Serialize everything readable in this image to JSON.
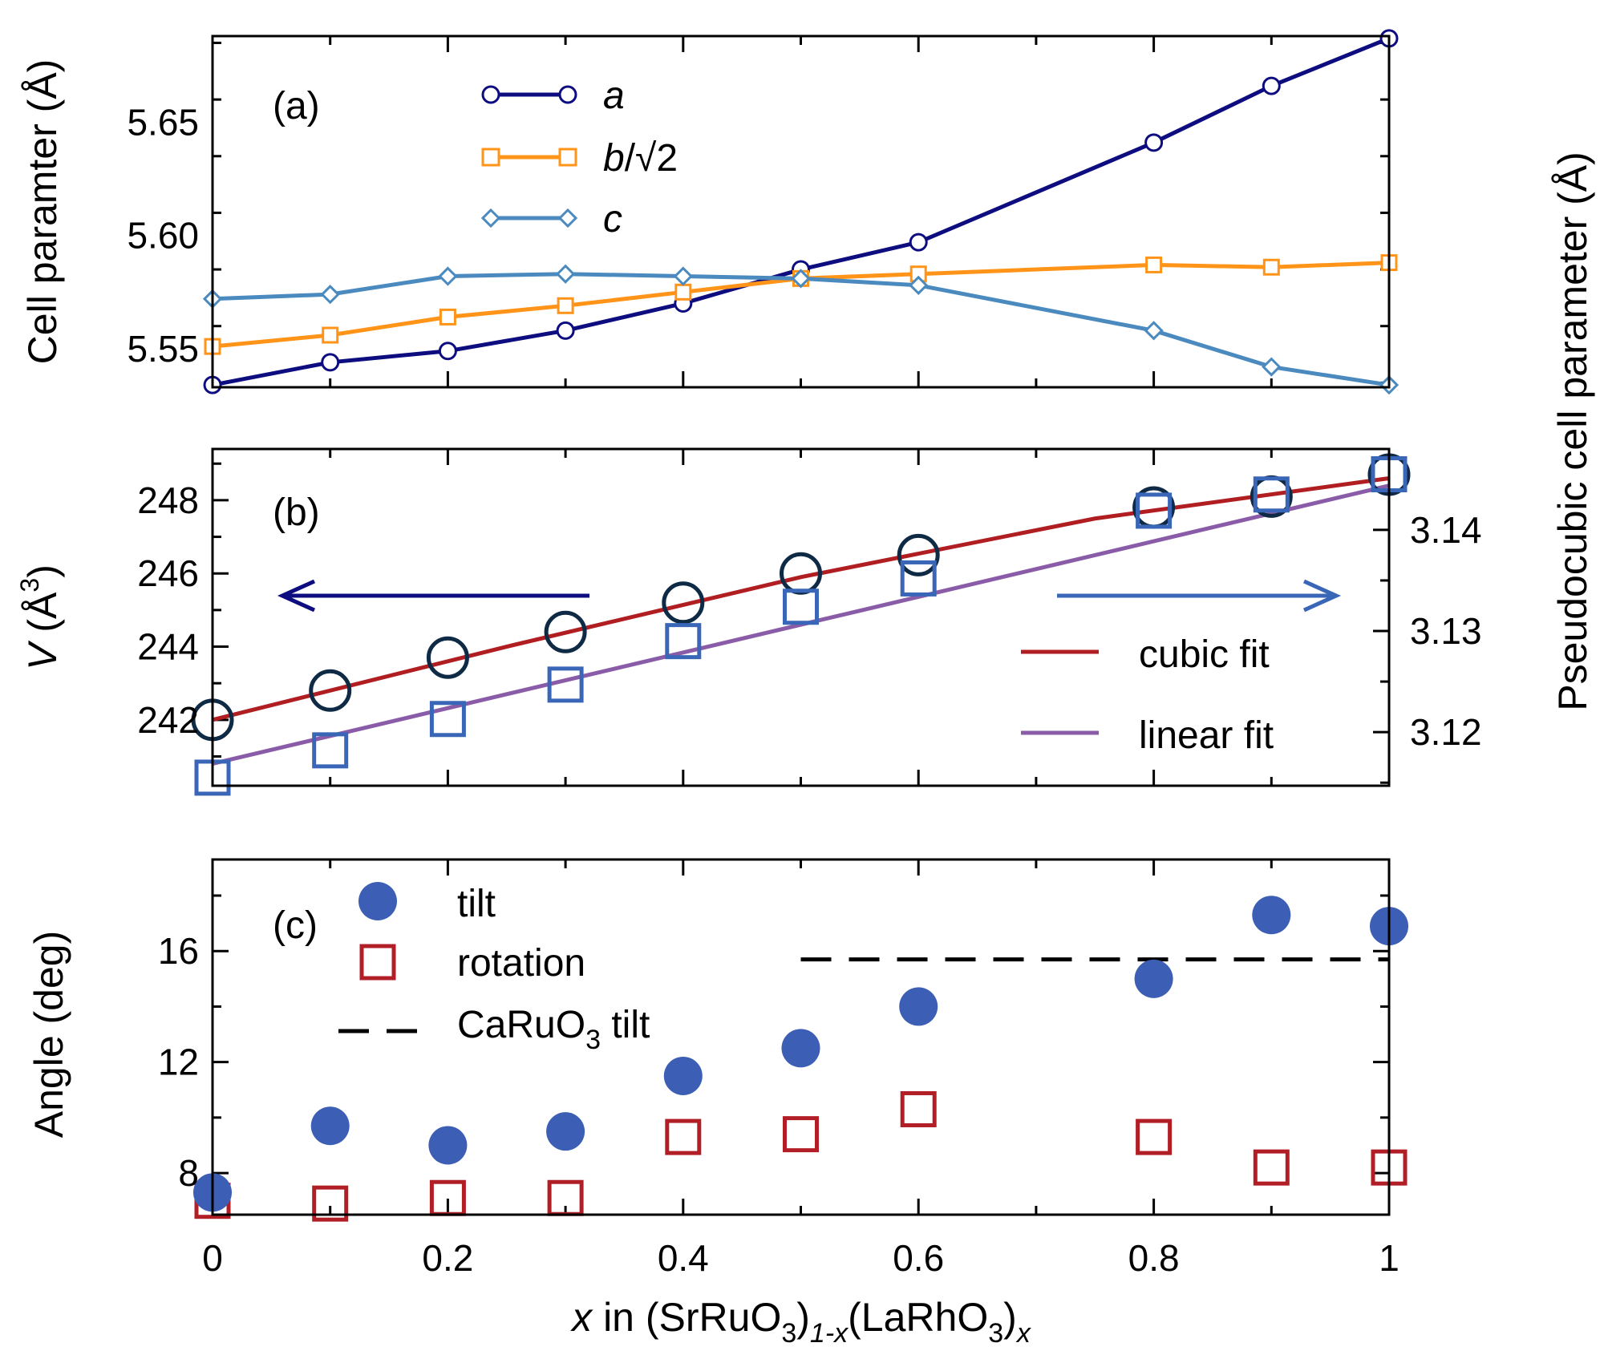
{
  "colors": {
    "a": "#0d0d80",
    "b": "#ff9419",
    "c": "#4a8abf",
    "volume_marker": "#0f2a45",
    "pseudocubic_marker": "#3a66b8",
    "cubic_fit": "#b01e22",
    "linear_fit": "#8a5ca8",
    "tilt": "#3c5fb5",
    "rotation": "#b21e25",
    "caruo3": "#000000",
    "arrow_left": "#0d0d80",
    "arrow_right": "#3a66b8"
  },
  "x_axis": {
    "label_prefix": "x",
    "label_main": " in (SrRuO",
    "label_sub1": "3",
    "label_mid1": ")",
    "label_sub2": "1-x",
    "label_mid2": "(LaRhO",
    "label_sub3": "3",
    "label_mid3": ")",
    "label_sub4": "x",
    "ticks": [
      "0",
      "0.2",
      "0.4",
      "0.6",
      "0.8",
      "1"
    ]
  },
  "chart_data": [
    {
      "type": "line",
      "panel": "(a)",
      "ylabel": "Cell paramter (Å)",
      "xlim": [
        0,
        1
      ],
      "ylim": [
        5.533,
        5.688
      ],
      "yticks": [
        "5.55",
        "5.60",
        "5.65"
      ],
      "x": [
        0,
        0.1,
        0.2,
        0.3,
        0.4,
        0.5,
        0.6,
        0.8,
        0.9,
        1.0
      ],
      "series": [
        {
          "name": "a",
          "marker": "circle",
          "values": [
            5.534,
            5.544,
            5.549,
            5.558,
            5.57,
            5.585,
            5.597,
            5.641,
            5.666,
            5.687
          ]
        },
        {
          "name": "b/√2",
          "marker": "square",
          "values": [
            5.551,
            5.556,
            5.564,
            5.569,
            5.575,
            5.581,
            5.583,
            5.587,
            5.586,
            5.588
          ]
        },
        {
          "name": "c",
          "marker": "diamond",
          "values": [
            5.572,
            5.574,
            5.582,
            5.583,
            5.582,
            5.581,
            5.578,
            5.558,
            5.542,
            5.534
          ]
        }
      ],
      "legend": {
        "a": "a",
        "b_main": "b",
        "b_rest": "/√2",
        "c": "c"
      }
    },
    {
      "type": "scatter",
      "panel": "(b)",
      "ylabel_left_main": "V",
      "ylabel_left_unit": " (Å",
      "ylabel_left_sup": "3",
      "ylabel_left_close": ")",
      "ylabel_right": "Pseudocubic cell parameter (Å)",
      "xlim": [
        0,
        1
      ],
      "ylim_left": [
        240.2,
        249.4
      ],
      "ylim_right": [
        3.1147,
        3.148
      ],
      "yticks_left": [
        "242",
        "244",
        "246",
        "248"
      ],
      "yticks_right": [
        "3.12",
        "3.13",
        "3.14"
      ],
      "x": [
        0,
        0.1,
        0.2,
        0.3,
        0.4,
        0.5,
        0.6,
        0.8,
        0.9,
        1.0
      ],
      "series": [
        {
          "name": "volume",
          "axis": "left",
          "marker": "open-circle",
          "values": [
            242.0,
            242.8,
            243.7,
            244.4,
            245.2,
            246.0,
            246.5,
            247.8,
            248.1,
            248.7
          ]
        },
        {
          "name": "pseudocubic",
          "axis": "right",
          "marker": "open-square",
          "values": [
            3.1155,
            3.1182,
            3.1213,
            3.1247,
            3.129,
            3.1324,
            3.1352,
            3.1419,
            3.1435,
            3.1455
          ]
        },
        {
          "name": "cubic fit",
          "axis": "left",
          "style": "line",
          "x": [
            0,
            0.25,
            0.5,
            0.75,
            1.0
          ],
          "values": [
            242.0,
            244.0,
            245.9,
            247.5,
            248.6
          ]
        },
        {
          "name": "linear fit",
          "axis": "left",
          "style": "line",
          "x": [
            0,
            1.0
          ],
          "values": [
            240.8,
            248.4
          ]
        }
      ],
      "legend": [
        "cubic fit",
        "linear fit"
      ]
    },
    {
      "type": "scatter",
      "panel": "(c)",
      "ylabel": "Angle (deg)",
      "xlim": [
        0,
        1
      ],
      "ylim": [
        6.5,
        19.3
      ],
      "yticks": [
        "8",
        "12",
        "16"
      ],
      "x": [
        0,
        0.1,
        0.2,
        0.3,
        0.4,
        0.5,
        0.6,
        0.8,
        0.9,
        1.0
      ],
      "series": [
        {
          "name": "tilt",
          "marker": "filled-circle",
          "values": [
            7.3,
            9.7,
            9.0,
            9.5,
            11.5,
            12.5,
            14.0,
            15.0,
            17.3,
            16.9
          ]
        },
        {
          "name": "rotation",
          "marker": "open-square",
          "values": [
            7.0,
            6.9,
            7.1,
            7.1,
            9.3,
            9.4,
            10.3,
            9.3,
            8.2,
            8.2
          ]
        },
        {
          "name": "CaRuO3 tilt",
          "style": "dashed",
          "x": [
            0.5,
            1.0
          ],
          "values": [
            15.7,
            15.7
          ]
        }
      ],
      "legend": {
        "tilt": "tilt",
        "rotation": "rotation",
        "caruo3_main": "CaRuO",
        "caruo3_sub": "3",
        "caruo3_rest": " tilt"
      }
    }
  ]
}
